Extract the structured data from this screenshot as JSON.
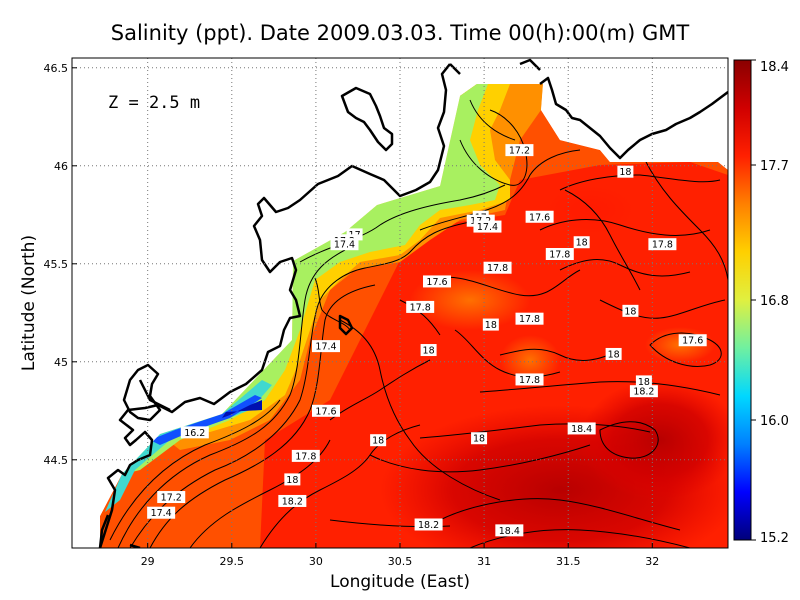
{
  "chart_data": {
    "type": "heatmap",
    "title": "Salinity (ppt). Date 2009.03.03. Time 00(h):00(m) GMT",
    "xlabel": "Longitude (East)",
    "ylabel": "Latitude (North)",
    "annotation": "Z = 2.5 m",
    "xlim": [
      28.55,
      32.45
    ],
    "ylim": [
      44.05,
      46.55
    ],
    "x_ticks": [
      "29",
      "29.5",
      "30",
      "30.5",
      "31",
      "31.5",
      "32"
    ],
    "y_ticks": [
      "44.5",
      "45",
      "45.5",
      "46",
      "46.5"
    ],
    "grid": true,
    "colorbar": {
      "min": 15.2,
      "max": 18.4,
      "ticks": [
        "15.2",
        "16.0",
        "16.8",
        "17.7",
        "18.4"
      ],
      "colors": [
        "#00007a",
        "#0000ff",
        "#0080ff",
        "#00d8ff",
        "#70f0a0",
        "#e0f040",
        "#ffd000",
        "#ff8000",
        "#ff2000",
        "#d00000",
        "#8a0000"
      ]
    },
    "contour_labels": [
      {
        "x": 31.21,
        "y": 46.08,
        "value": "17.2"
      },
      {
        "x": 31.84,
        "y": 45.97,
        "value": "18"
      },
      {
        "x": 30.98,
        "y": 45.74,
        "value": "17"
      },
      {
        "x": 30.98,
        "y": 45.72,
        "value": "17.2"
      },
      {
        "x": 31.02,
        "y": 45.69,
        "value": "17.4"
      },
      {
        "x": 31.33,
        "y": 45.74,
        "value": "17.6"
      },
      {
        "x": 30.23,
        "y": 45.65,
        "value": "17"
      },
      {
        "x": 30.17,
        "y": 45.62,
        "value": "17.2"
      },
      {
        "x": 30.17,
        "y": 45.6,
        "value": "17.4"
      },
      {
        "x": 31.58,
        "y": 45.61,
        "value": "18"
      },
      {
        "x": 31.45,
        "y": 45.55,
        "value": "17.8"
      },
      {
        "x": 32.06,
        "y": 45.6,
        "value": "17.8"
      },
      {
        "x": 31.08,
        "y": 45.48,
        "value": "17.8"
      },
      {
        "x": 30.72,
        "y": 45.41,
        "value": "17.6"
      },
      {
        "x": 30.62,
        "y": 45.28,
        "value": "17.8"
      },
      {
        "x": 31.87,
        "y": 45.26,
        "value": "18"
      },
      {
        "x": 31.27,
        "y": 45.22,
        "value": "17.8"
      },
      {
        "x": 31.04,
        "y": 45.19,
        "value": "18"
      },
      {
        "x": 30.06,
        "y": 45.08,
        "value": "17.4"
      },
      {
        "x": 30.67,
        "y": 45.06,
        "value": "18"
      },
      {
        "x": 32.24,
        "y": 45.11,
        "value": "17.6"
      },
      {
        "x": 31.77,
        "y": 45.04,
        "value": "18"
      },
      {
        "x": 31.27,
        "y": 44.91,
        "value": "17.8"
      },
      {
        "x": 31.95,
        "y": 44.9,
        "value": "18"
      },
      {
        "x": 31.95,
        "y": 44.85,
        "value": "18.2"
      },
      {
        "x": 30.06,
        "y": 44.75,
        "value": "17.6"
      },
      {
        "x": 31.58,
        "y": 44.66,
        "value": "18.4"
      },
      {
        "x": 29.28,
        "y": 44.64,
        "value": "16.2"
      },
      {
        "x": 30.37,
        "y": 44.6,
        "value": "18"
      },
      {
        "x": 30.97,
        "y": 44.61,
        "value": "18"
      },
      {
        "x": 29.94,
        "y": 44.52,
        "value": "17.8"
      },
      {
        "x": 29.86,
        "y": 44.4,
        "value": "18"
      },
      {
        "x": 29.14,
        "y": 44.31,
        "value": "17.2"
      },
      {
        "x": 29.86,
        "y": 44.29,
        "value": "18.2"
      },
      {
        "x": 29.08,
        "y": 44.23,
        "value": "17.4"
      },
      {
        "x": 30.67,
        "y": 44.17,
        "value": "18.2"
      },
      {
        "x": 31.15,
        "y": 44.14,
        "value": "18.4"
      }
    ]
  }
}
